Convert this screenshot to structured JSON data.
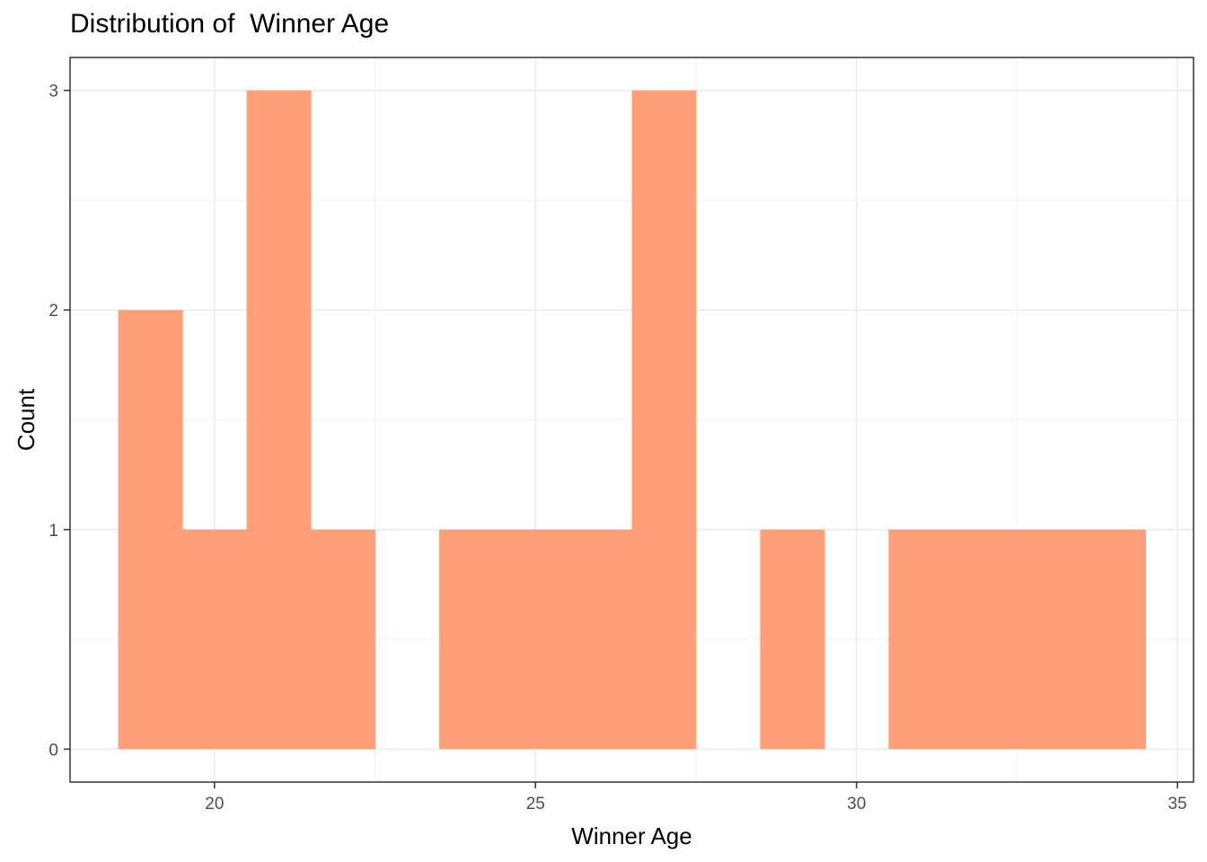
{
  "chart_data": {
    "type": "bar",
    "title": "Distribution of  Winner Age",
    "xlabel": "Winner Age",
    "ylabel": "Count",
    "bins": [
      {
        "x0": 18.5,
        "x1": 19.5,
        "count": 2
      },
      {
        "x0": 19.5,
        "x1": 20.5,
        "count": 1
      },
      {
        "x0": 20.5,
        "x1": 21.5,
        "count": 3
      },
      {
        "x0": 21.5,
        "x1": 22.5,
        "count": 1
      },
      {
        "x0": 22.5,
        "x1": 23.5,
        "count": 0
      },
      {
        "x0": 23.5,
        "x1": 24.5,
        "count": 1
      },
      {
        "x0": 24.5,
        "x1": 25.5,
        "count": 1
      },
      {
        "x0": 25.5,
        "x1": 26.5,
        "count": 1
      },
      {
        "x0": 26.5,
        "x1": 27.5,
        "count": 3
      },
      {
        "x0": 27.5,
        "x1": 28.5,
        "count": 0
      },
      {
        "x0": 28.5,
        "x1": 29.5,
        "count": 1
      },
      {
        "x0": 29.5,
        "x1": 30.5,
        "count": 0
      },
      {
        "x0": 30.5,
        "x1": 31.5,
        "count": 1
      },
      {
        "x0": 31.5,
        "x1": 32.5,
        "count": 1
      },
      {
        "x0": 32.5,
        "x1": 33.5,
        "count": 1
      },
      {
        "x0": 33.5,
        "x1": 34.5,
        "count": 1
      }
    ],
    "xlim": [
      17.75,
      35.25
    ],
    "ylim": [
      -0.15,
      3.15
    ],
    "xticks": [
      20,
      25,
      30,
      35
    ],
    "yticks": [
      0,
      1,
      2,
      3
    ],
    "grid": true,
    "bar_color": "#FFA07A"
  }
}
